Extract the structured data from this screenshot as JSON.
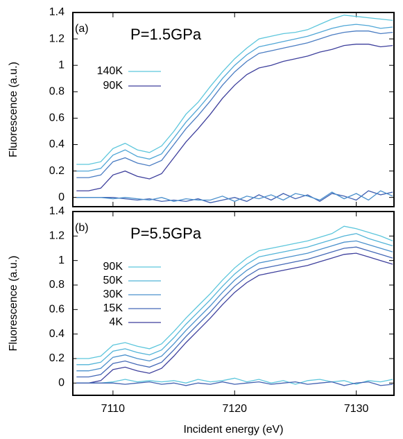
{
  "chart_data": [
    {
      "type": "line",
      "annotations": [
        "(a)",
        "P=1.5GPa"
      ],
      "ylabel": "Fluorescence (a.u.)",
      "x": [
        7107,
        7108,
        7109,
        7110,
        7111,
        7112,
        7113,
        7114,
        7115,
        7116,
        7117,
        7118,
        7119,
        7120,
        7121,
        7122,
        7123,
        7124,
        7125,
        7126,
        7127,
        7128,
        7129,
        7130,
        7131,
        7132,
        7133
      ],
      "xlim": [
        7106.7,
        7133.1
      ],
      "xticks": [
        7110,
        7120,
        7130
      ],
      "ylim": [
        -0.07,
        1.4
      ],
      "yticks": [
        0,
        0.2,
        0.4,
        0.6,
        0.8,
        1,
        1.2,
        1.4
      ],
      "series": [
        {
          "name": "140K",
          "color": "#5cc6dc",
          "values": [
            0.25,
            0.25,
            0.27,
            0.37,
            0.41,
            0.36,
            0.34,
            0.39,
            0.5,
            0.63,
            0.72,
            0.84,
            0.95,
            1.05,
            1.13,
            1.2,
            1.22,
            1.24,
            1.25,
            1.27,
            1.31,
            1.35,
            1.38,
            1.37,
            1.36,
            1.35,
            1.34
          ]
        },
        {
          "color": "#4fa6d6",
          "values": [
            0.2,
            0.2,
            0.22,
            0.32,
            0.36,
            0.31,
            0.29,
            0.33,
            0.45,
            0.57,
            0.67,
            0.78,
            0.9,
            1.0,
            1.08,
            1.14,
            1.16,
            1.18,
            1.2,
            1.22,
            1.25,
            1.28,
            1.3,
            1.31,
            1.3,
            1.28,
            1.29
          ]
        },
        {
          "color": "#4a7cc2",
          "values": [
            0.15,
            0.15,
            0.17,
            0.27,
            0.3,
            0.26,
            0.24,
            0.28,
            0.4,
            0.52,
            0.62,
            0.73,
            0.85,
            0.95,
            1.03,
            1.09,
            1.11,
            1.13,
            1.15,
            1.17,
            1.2,
            1.23,
            1.25,
            1.26,
            1.26,
            1.24,
            1.25
          ]
        },
        {
          "name": "90K",
          "color": "#3d3f9c",
          "values": [
            0.05,
            0.05,
            0.07,
            0.17,
            0.2,
            0.16,
            0.14,
            0.18,
            0.3,
            0.42,
            0.52,
            0.63,
            0.75,
            0.85,
            0.93,
            0.98,
            1.0,
            1.03,
            1.05,
            1.07,
            1.1,
            1.12,
            1.15,
            1.16,
            1.16,
            1.14,
            1.15
          ]
        },
        {
          "color": "#3f5fb0",
          "values": [
            0,
            0,
            0,
            0,
            -0.01,
            -0.02,
            -0.01,
            -0.03,
            -0.02,
            -0.03,
            -0.01,
            -0.04,
            -0.02,
            0,
            -0.03,
            0.02,
            -0.02,
            0.03,
            -0.01,
            0.02,
            -0.03,
            0.03,
            0.01,
            -0.02,
            0.05,
            0.02,
            0.04
          ]
        },
        {
          "color": "#4a8fcc",
          "values": [
            0,
            0,
            0,
            -0.01,
            0,
            -0.01,
            -0.02,
            0,
            -0.03,
            -0.01,
            -0.02,
            -0.02,
            0.01,
            -0.03,
            0.01,
            -0.01,
            0.02,
            -0.02,
            0.03,
            0.01,
            -0.02,
            0.04,
            -0.01,
            0.03,
            -0.02,
            0.05,
            0.01
          ]
        }
      ]
    },
    {
      "type": "line",
      "annotations": [
        "(b)",
        "P=5.5GPa"
      ],
      "ylabel": "Fluorescence (a.u.)",
      "xlabel": "Incident energy (eV)",
      "x": [
        7107,
        7108,
        7109,
        7110,
        7111,
        7112,
        7113,
        7114,
        7115,
        7116,
        7117,
        7118,
        7119,
        7120,
        7121,
        7122,
        7123,
        7124,
        7125,
        7126,
        7127,
        7128,
        7129,
        7130,
        7131,
        7132,
        7133
      ],
      "xlim": [
        7106.7,
        7133.1
      ],
      "xticks": [
        7110,
        7120,
        7130
      ],
      "ylim": [
        -0.1,
        1.4
      ],
      "yticks": [
        0,
        0.2,
        0.4,
        0.6,
        0.8,
        1,
        1.2,
        1.4
      ],
      "series": [
        {
          "name": "90K",
          "color": "#5cc6dc",
          "values": [
            0.2,
            0.2,
            0.22,
            0.31,
            0.33,
            0.3,
            0.28,
            0.32,
            0.42,
            0.53,
            0.63,
            0.73,
            0.84,
            0.94,
            1.02,
            1.08,
            1.1,
            1.12,
            1.14,
            1.16,
            1.19,
            1.22,
            1.28,
            1.26,
            1.23,
            1.2,
            1.16
          ]
        },
        {
          "name": "50K",
          "color": "#52b4d8",
          "values": [
            0.15,
            0.15,
            0.17,
            0.26,
            0.28,
            0.25,
            0.23,
            0.27,
            0.37,
            0.48,
            0.58,
            0.68,
            0.79,
            0.89,
            0.97,
            1.03,
            1.05,
            1.07,
            1.09,
            1.11,
            1.14,
            1.17,
            1.2,
            1.22,
            1.18,
            1.15,
            1.12
          ]
        },
        {
          "name": "30K",
          "color": "#4a90cc",
          "values": [
            0.1,
            0.1,
            0.12,
            0.21,
            0.23,
            0.2,
            0.18,
            0.22,
            0.32,
            0.43,
            0.53,
            0.63,
            0.74,
            0.84,
            0.92,
            0.98,
            1.0,
            1.02,
            1.04,
            1.06,
            1.09,
            1.12,
            1.15,
            1.16,
            1.13,
            1.1,
            1.07
          ]
        },
        {
          "name": "15K",
          "color": "#4468b6",
          "values": [
            0.05,
            0.05,
            0.07,
            0.16,
            0.18,
            0.15,
            0.13,
            0.17,
            0.27,
            0.38,
            0.48,
            0.58,
            0.69,
            0.79,
            0.87,
            0.93,
            0.95,
            0.97,
            0.99,
            1.01,
            1.04,
            1.07,
            1.1,
            1.11,
            1.08,
            1.05,
            1.02
          ]
        },
        {
          "name": "4K",
          "color": "#3d3f9c",
          "values": [
            0,
            0,
            0.02,
            0.11,
            0.13,
            0.1,
            0.08,
            0.12,
            0.22,
            0.33,
            0.43,
            0.53,
            0.64,
            0.74,
            0.82,
            0.88,
            0.9,
            0.92,
            0.94,
            0.96,
            0.99,
            1.02,
            1.05,
            1.06,
            1.03,
            1.0,
            0.97
          ]
        },
        {
          "color": "#5cc6dc",
          "values": [
            0,
            0,
            0,
            0.01,
            0.03,
            0.01,
            0.02,
            0.01,
            0.02,
            0,
            0.03,
            0.01,
            0.02,
            0.04,
            0.01,
            0.03,
            0,
            0.02,
            -0.01,
            0.02,
            0.03,
            0.01,
            0.02,
            -0.01,
            0.02,
            0.01,
            0.03
          ]
        },
        {
          "color": "#3f5fb0",
          "values": [
            0,
            0,
            0,
            0,
            -0.01,
            0,
            0.01,
            -0.01,
            0,
            -0.02,
            0,
            -0.01,
            0.01,
            -0.01,
            0,
            0.01,
            -0.01,
            0,
            0.01,
            -0.01,
            0,
            0.01,
            -0.02,
            0,
            0.01,
            -0.02,
            -0.01
          ]
        }
      ]
    }
  ]
}
